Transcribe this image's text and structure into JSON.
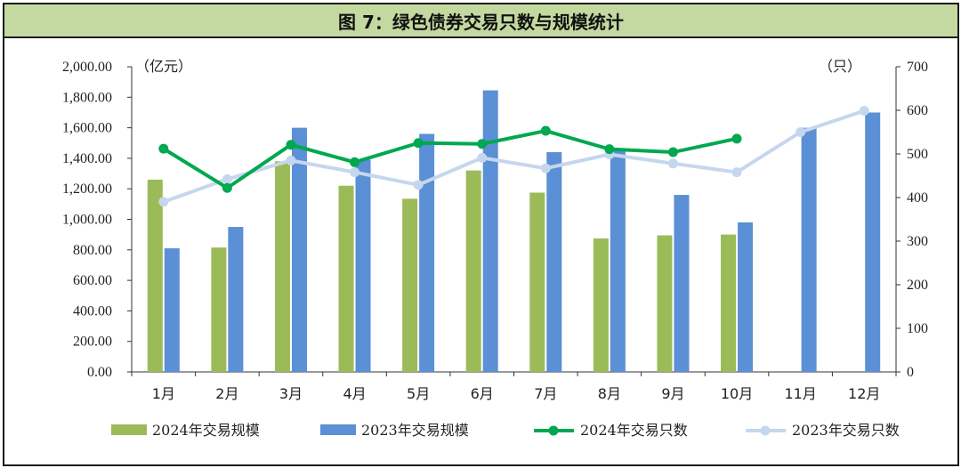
{
  "chart_data": {
    "type": "bar",
    "title": "图 7：绿色债券交易只数与规模统计",
    "categories": [
      "1月",
      "2月",
      "3月",
      "4月",
      "5月",
      "6月",
      "7月",
      "8月",
      "9月",
      "10月",
      "11月",
      "12月"
    ],
    "y_left": {
      "unit_label": "（亿元）",
      "range": [
        0,
        2000
      ],
      "ticks": [
        "0.00",
        "200.00",
        "400.00",
        "600.00",
        "800.00",
        "1,000.00",
        "1,200.00",
        "1,400.00",
        "1,600.00",
        "1,800.00",
        "2,000.00"
      ]
    },
    "y_right": {
      "unit_label": "（只）",
      "range": [
        0,
        700
      ],
      "ticks": [
        "0",
        "100",
        "200",
        "300",
        "400",
        "500",
        "600",
        "700"
      ]
    },
    "series": [
      {
        "name": "2024年交易规模",
        "kind": "bar",
        "axis": "left",
        "color": "#9bbb59",
        "values": [
          1260,
          815,
          1380,
          1220,
          1135,
          1320,
          1175,
          875,
          895,
          900,
          null,
          null
        ]
      },
      {
        "name": "2023年交易规模",
        "kind": "bar",
        "axis": "left",
        "color": "#5b8fd6",
        "values": [
          810,
          950,
          1600,
          1390,
          1560,
          1845,
          1440,
          1450,
          1160,
          980,
          1600,
          1700
        ]
      },
      {
        "name": "2024年交易只数",
        "kind": "line",
        "axis": "right",
        "color": "#00a84f",
        "values": [
          512,
          422,
          521,
          481,
          525,
          523,
          553,
          511,
          504,
          535,
          null,
          null
        ]
      },
      {
        "name": "2023年交易只数",
        "kind": "line",
        "axis": "right",
        "color": "#c5d7ee",
        "values": [
          390,
          442,
          485,
          458,
          429,
          491,
          467,
          499,
          478,
          458,
          550,
          599
        ]
      }
    ],
    "legend_position": "bottom",
    "grid": false
  }
}
